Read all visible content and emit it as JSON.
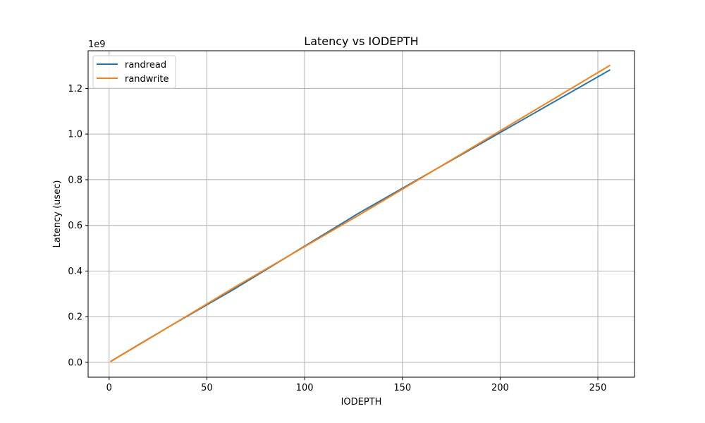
{
  "chart_data": {
    "type": "line",
    "title": "Latency vs IODEPTH",
    "xlabel": "IODEPTH",
    "ylabel": "Latency (usec)",
    "y_offset_label": "1e9",
    "y_scale": 1000000000,
    "xlim": [
      -10.75,
      268.75
    ],
    "ylim": [
      -65000000,
      1365000000
    ],
    "x_ticks": [
      0,
      50,
      100,
      150,
      200,
      250
    ],
    "x_tick_labels": [
      "0",
      "50",
      "100",
      "150",
      "200",
      "250"
    ],
    "y_ticks": [
      0,
      200000000,
      400000000,
      600000000,
      800000000,
      1000000000,
      1200000000
    ],
    "y_tick_labels": [
      "0.0",
      "0.2",
      "0.4",
      "0.6",
      "0.8",
      "1.0",
      "1.2"
    ],
    "grid": true,
    "legend_position": "top-left",
    "series": [
      {
        "name": "randread",
        "color": "#1f77b4",
        "x": [
          1,
          16,
          32,
          64,
          128,
          256
        ],
        "y": [
          5000000,
          82000000,
          163000000,
          321000000,
          655000000,
          1280000000
        ]
      },
      {
        "name": "randwrite",
        "color": "#ff7f0e",
        "x": [
          1,
          16,
          32,
          64,
          128,
          256
        ],
        "y": [
          5000000,
          81000000,
          163000000,
          328000000,
          646000000,
          1300000000
        ]
      }
    ]
  }
}
